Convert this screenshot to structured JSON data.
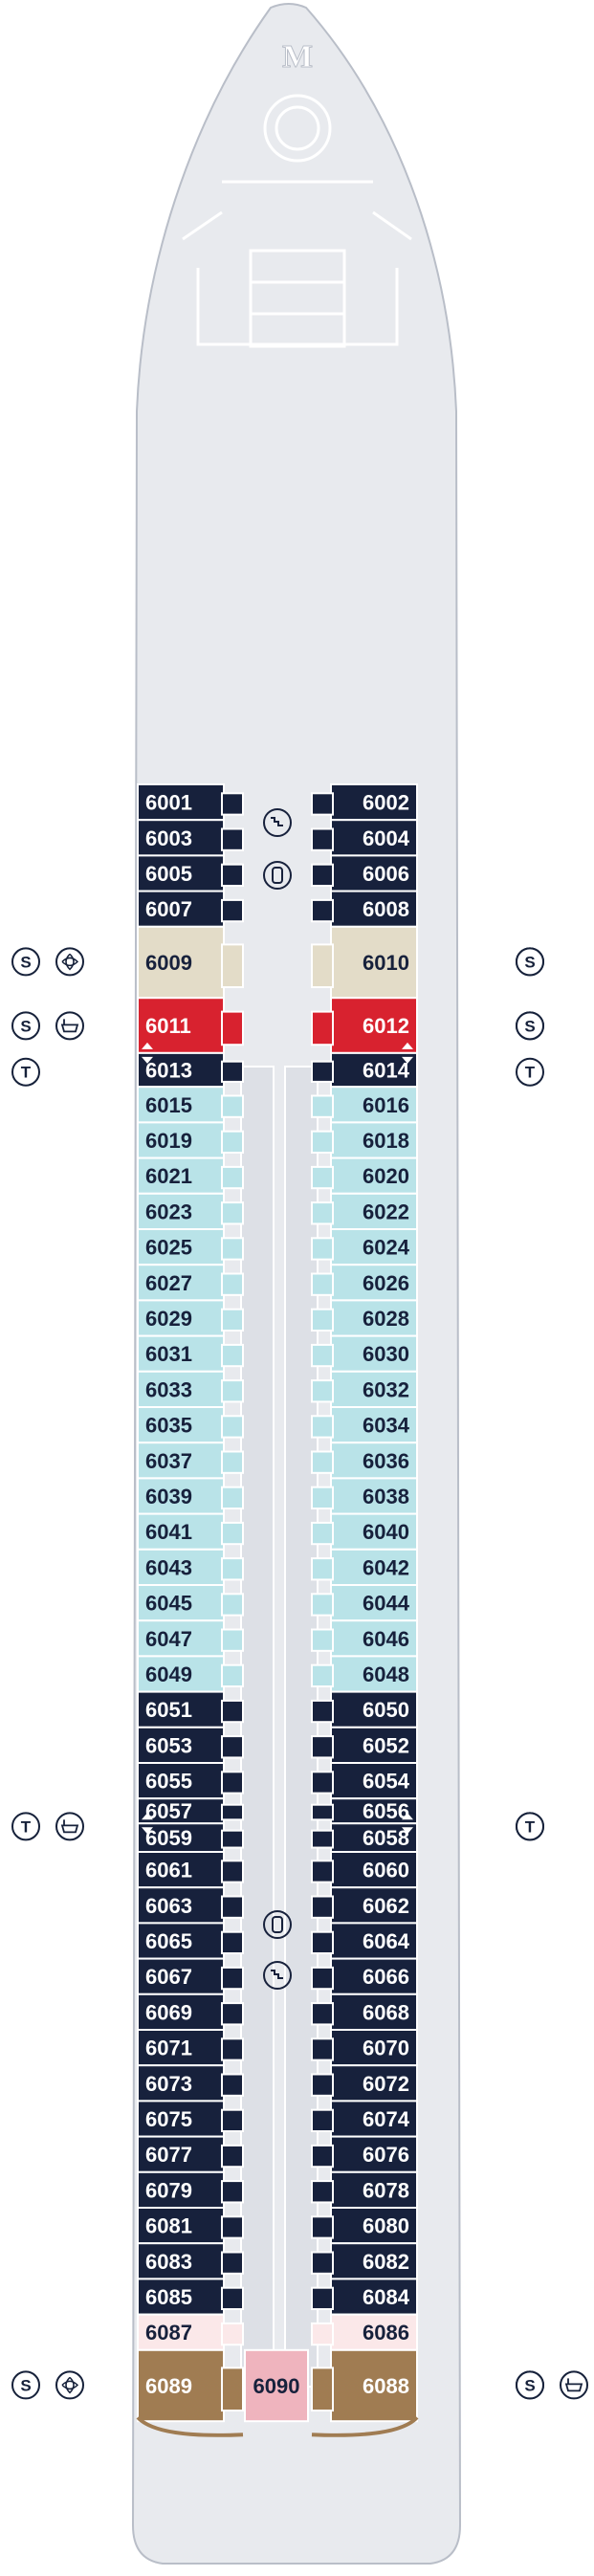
{
  "colors": {
    "hull": "#e8eaee",
    "hull_outline": "#b9bec8",
    "outline_light": "#ffffff",
    "dark": "#17213c",
    "light_blue": "#b9e3e8",
    "beige": "#e3dcc8",
    "red": "#d8222f",
    "pale_pink": "#fbe8e9",
    "brown": "#a07c52",
    "pink": "#efb4be",
    "corridor": "#dde0e6",
    "text_light": "#ffffff",
    "text_dark": "#17213c"
  },
  "cabins": [
    {
      "num": "6001",
      "side": "L",
      "color": "dark",
      "row": 0
    },
    {
      "num": "6002",
      "side": "R",
      "color": "dark",
      "row": 0
    },
    {
      "num": "6003",
      "side": "L",
      "color": "dark",
      "row": 1
    },
    {
      "num": "6004",
      "side": "R",
      "color": "dark",
      "row": 1
    },
    {
      "num": "6005",
      "side": "L",
      "color": "dark",
      "row": 2
    },
    {
      "num": "6006",
      "side": "R",
      "color": "dark",
      "row": 2
    },
    {
      "num": "6007",
      "side": "L",
      "color": "dark",
      "row": 3
    },
    {
      "num": "6008",
      "side": "R",
      "color": "dark",
      "row": 3
    },
    {
      "num": "6009",
      "side": "L",
      "color": "beige",
      "row": 4,
      "h": 2
    },
    {
      "num": "6010",
      "side": "R",
      "color": "beige",
      "row": 4,
      "h": 2
    },
    {
      "num": "6011",
      "side": "L",
      "color": "red",
      "row": 6,
      "h": 1.55
    },
    {
      "num": "6012",
      "side": "R",
      "color": "red",
      "row": 6,
      "h": 1.55
    },
    {
      "num": "6013",
      "side": "L",
      "color": "dark",
      "row": 7.55,
      "h": 0.95
    },
    {
      "num": "6014",
      "side": "R",
      "color": "dark",
      "row": 7.55,
      "h": 0.95
    },
    {
      "num": "6015",
      "side": "L",
      "color": "light_blue",
      "row": 8.5
    },
    {
      "num": "6016",
      "side": "R",
      "color": "light_blue",
      "row": 8.5
    },
    {
      "num": "6019",
      "side": "L",
      "color": "light_blue",
      "row": 9.5
    },
    {
      "num": "6018",
      "side": "R",
      "color": "light_blue",
      "row": 9.5
    },
    {
      "num": "6021",
      "side": "L",
      "color": "light_blue",
      "row": 10.5
    },
    {
      "num": "6020",
      "side": "R",
      "color": "light_blue",
      "row": 10.5
    },
    {
      "num": "6023",
      "side": "L",
      "color": "light_blue",
      "row": 11.5
    },
    {
      "num": "6022",
      "side": "R",
      "color": "light_blue",
      "row": 11.5
    },
    {
      "num": "6025",
      "side": "L",
      "color": "light_blue",
      "row": 12.5
    },
    {
      "num": "6024",
      "side": "R",
      "color": "light_blue",
      "row": 12.5
    },
    {
      "num": "6027",
      "side": "L",
      "color": "light_blue",
      "row": 13.5
    },
    {
      "num": "6026",
      "side": "R",
      "color": "light_blue",
      "row": 13.5
    },
    {
      "num": "6029",
      "side": "L",
      "color": "light_blue",
      "row": 14.5
    },
    {
      "num": "6028",
      "side": "R",
      "color": "light_blue",
      "row": 14.5
    },
    {
      "num": "6031",
      "side": "L",
      "color": "light_blue",
      "row": 15.5
    },
    {
      "num": "6030",
      "side": "R",
      "color": "light_blue",
      "row": 15.5
    },
    {
      "num": "6033",
      "side": "L",
      "color": "light_blue",
      "row": 16.5
    },
    {
      "num": "6032",
      "side": "R",
      "color": "light_blue",
      "row": 16.5
    },
    {
      "num": "6035",
      "side": "L",
      "color": "light_blue",
      "row": 17.5
    },
    {
      "num": "6034",
      "side": "R",
      "color": "light_blue",
      "row": 17.5
    },
    {
      "num": "6037",
      "side": "L",
      "color": "light_blue",
      "row": 18.5
    },
    {
      "num": "6036",
      "side": "R",
      "color": "light_blue",
      "row": 18.5
    },
    {
      "num": "6039",
      "side": "L",
      "color": "light_blue",
      "row": 19.5
    },
    {
      "num": "6038",
      "side": "R",
      "color": "light_blue",
      "row": 19.5
    },
    {
      "num": "6041",
      "side": "L",
      "color": "light_blue",
      "row": 20.5
    },
    {
      "num": "6040",
      "side": "R",
      "color": "light_blue",
      "row": 20.5
    },
    {
      "num": "6043",
      "side": "L",
      "color": "light_blue",
      "row": 21.5
    },
    {
      "num": "6042",
      "side": "R",
      "color": "light_blue",
      "row": 21.5
    },
    {
      "num": "6045",
      "side": "L",
      "color": "light_blue",
      "row": 22.5
    },
    {
      "num": "6044",
      "side": "R",
      "color": "light_blue",
      "row": 22.5
    },
    {
      "num": "6047",
      "side": "L",
      "color": "light_blue",
      "row": 23.5
    },
    {
      "num": "6046",
      "side": "R",
      "color": "light_blue",
      "row": 23.5
    },
    {
      "num": "6049",
      "side": "L",
      "color": "light_blue",
      "row": 24.5
    },
    {
      "num": "6048",
      "side": "R",
      "color": "light_blue",
      "row": 24.5
    },
    {
      "num": "6051",
      "side": "L",
      "color": "dark",
      "row": 25.5
    },
    {
      "num": "6050",
      "side": "R",
      "color": "dark",
      "row": 25.5
    },
    {
      "num": "6053",
      "side": "L",
      "color": "dark",
      "row": 26.5
    },
    {
      "num": "6052",
      "side": "R",
      "color": "dark",
      "row": 26.5
    },
    {
      "num": "6055",
      "side": "L",
      "color": "dark",
      "row": 27.5
    },
    {
      "num": "6054",
      "side": "R",
      "color": "dark",
      "row": 27.5
    },
    {
      "num": "6057",
      "side": "L",
      "color": "dark",
      "row": 28.5,
      "h": 0.7
    },
    {
      "num": "6056",
      "side": "R",
      "color": "dark",
      "row": 28.5,
      "h": 0.7
    },
    {
      "num": "6059",
      "side": "L",
      "color": "dark",
      "row": 29.2,
      "h": 0.8
    },
    {
      "num": "6058",
      "side": "R",
      "color": "dark",
      "row": 29.2,
      "h": 0.8
    },
    {
      "num": "6061",
      "side": "L",
      "color": "dark",
      "row": 30
    },
    {
      "num": "6060",
      "side": "R",
      "color": "dark",
      "row": 30
    },
    {
      "num": "6063",
      "side": "L",
      "color": "dark",
      "row": 31
    },
    {
      "num": "6062",
      "side": "R",
      "color": "dark",
      "row": 31
    },
    {
      "num": "6065",
      "side": "L",
      "color": "dark",
      "row": 32
    },
    {
      "num": "6064",
      "side": "R",
      "color": "dark",
      "row": 32
    },
    {
      "num": "6067",
      "side": "L",
      "color": "dark",
      "row": 33
    },
    {
      "num": "6066",
      "side": "R",
      "color": "dark",
      "row": 33
    },
    {
      "num": "6069",
      "side": "L",
      "color": "dark",
      "row": 34
    },
    {
      "num": "6068",
      "side": "R",
      "color": "dark",
      "row": 34
    },
    {
      "num": "6071",
      "side": "L",
      "color": "dark",
      "row": 35
    },
    {
      "num": "6070",
      "side": "R",
      "color": "dark",
      "row": 35
    },
    {
      "num": "6073",
      "side": "L",
      "color": "dark",
      "row": 36
    },
    {
      "num": "6072",
      "side": "R",
      "color": "dark",
      "row": 36
    },
    {
      "num": "6075",
      "side": "L",
      "color": "dark",
      "row": 37
    },
    {
      "num": "6074",
      "side": "R",
      "color": "dark",
      "row": 37
    },
    {
      "num": "6077",
      "side": "L",
      "color": "dark",
      "row": 38
    },
    {
      "num": "6076",
      "side": "R",
      "color": "dark",
      "row": 38
    },
    {
      "num": "6079",
      "side": "L",
      "color": "dark",
      "row": 39
    },
    {
      "num": "6078",
      "side": "R",
      "color": "dark",
      "row": 39
    },
    {
      "num": "6081",
      "side": "L",
      "color": "dark",
      "row": 40
    },
    {
      "num": "6080",
      "side": "R",
      "color": "dark",
      "row": 40
    },
    {
      "num": "6083",
      "side": "L",
      "color": "dark",
      "row": 41
    },
    {
      "num": "6082",
      "side": "R",
      "color": "dark",
      "row": 41
    },
    {
      "num": "6085",
      "side": "L",
      "color": "dark",
      "row": 42
    },
    {
      "num": "6084",
      "side": "R",
      "color": "dark",
      "row": 42
    },
    {
      "num": "6087",
      "side": "L",
      "color": "pale_pink",
      "row": 43
    },
    {
      "num": "6086",
      "side": "R",
      "color": "pale_pink",
      "row": 43
    },
    {
      "num": "6089",
      "side": "L",
      "color": "brown",
      "row": 44,
      "h": 2
    },
    {
      "num": "6088",
      "side": "R",
      "color": "brown",
      "row": 44,
      "h": 2
    },
    {
      "num": "6090",
      "side": "C",
      "color": "pink",
      "row": 44,
      "h": 2
    }
  ],
  "legend_icons": [
    {
      "name": "suite-icon",
      "text": "S",
      "row": 4.5,
      "slot": 0,
      "side": "L"
    },
    {
      "name": "spa-icon",
      "text": "",
      "row": 4.5,
      "slot": 1,
      "side": "L"
    },
    {
      "name": "spa-icon",
      "text": "",
      "row": 4.5,
      "slot": 1,
      "side": "R"
    },
    {
      "name": "suite-icon",
      "text": "S",
      "row": 4.5,
      "slot": 0,
      "side": "R"
    },
    {
      "name": "suite-icon",
      "text": "S",
      "row": 6.3,
      "slot": 0,
      "side": "L"
    },
    {
      "name": "bathtub-icon",
      "text": "",
      "row": 6.3,
      "slot": 1,
      "side": "L"
    },
    {
      "name": "bathtub-icon",
      "text": "",
      "row": 6.3,
      "slot": 1,
      "side": "R"
    },
    {
      "name": "suite-icon",
      "text": "S",
      "row": 6.3,
      "slot": 0,
      "side": "R"
    },
    {
      "name": "triple-icon",
      "text": "T",
      "row": 7.6,
      "slot": 0,
      "side": "L"
    },
    {
      "name": "triple-icon",
      "text": "T",
      "row": 7.6,
      "slot": 0,
      "side": "R"
    },
    {
      "name": "triple-icon",
      "text": "T",
      "row": 28.8,
      "slot": 0,
      "side": "L"
    },
    {
      "name": "bathtub-icon",
      "text": "",
      "row": 28.8,
      "slot": 1,
      "side": "L"
    },
    {
      "name": "bathtub-icon",
      "text": "",
      "row": 28.8,
      "slot": 1,
      "side": "R"
    },
    {
      "name": "triple-icon",
      "text": "T",
      "row": 28.8,
      "slot": 0,
      "side": "R"
    },
    {
      "name": "suite-icon",
      "text": "S",
      "row": 44.5,
      "slot": 0,
      "side": "L"
    },
    {
      "name": "spa-icon",
      "text": "",
      "row": 44.5,
      "slot": 1,
      "side": "L"
    },
    {
      "name": "spa-icon",
      "text": "",
      "row": 44.5,
      "slot": 1,
      "side": "R"
    },
    {
      "name": "suite-icon",
      "text": "S",
      "row": 44.5,
      "slot": 0,
      "side": "R"
    },
    {
      "name": "bathtub-icon",
      "text": "",
      "row": 44.5,
      "slot": 2,
      "side": "R"
    }
  ],
  "triangle_markers": [
    "6013",
    "6014",
    "6057",
    "6056",
    "6059",
    "6058",
    "6011",
    "6012"
  ]
}
